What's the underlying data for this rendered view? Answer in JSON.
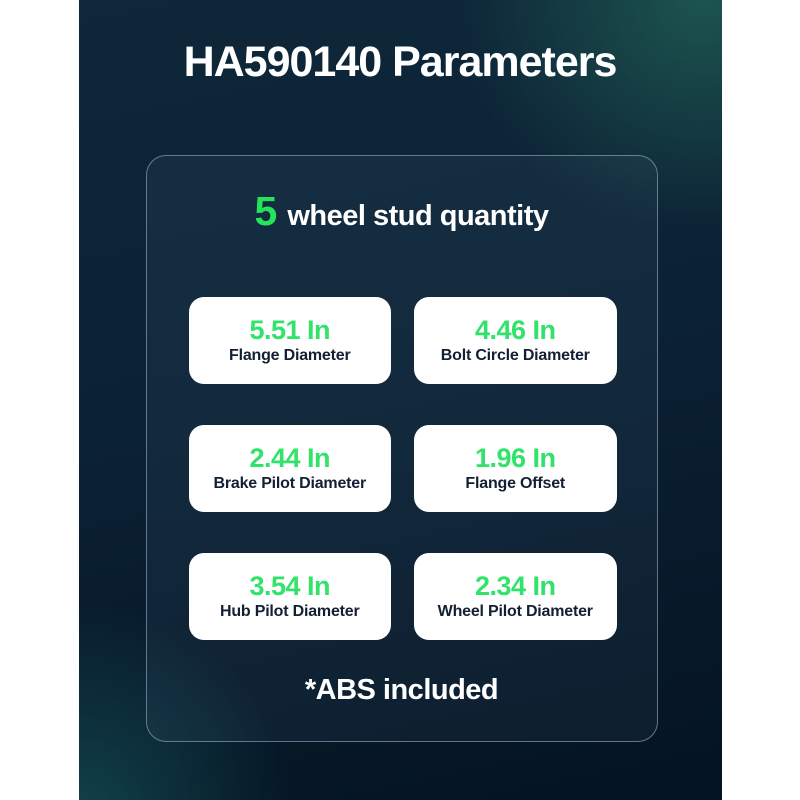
{
  "title": "HA590140 Parameters",
  "panel": {
    "stud_quantity": {
      "number": "5",
      "text": "wheel stud quantity"
    },
    "cards": [
      {
        "value": "5.51 In",
        "label": "Flange Diameter"
      },
      {
        "value": "4.46 In",
        "label": "Bolt Circle Diameter"
      },
      {
        "value": "2.44 In",
        "label": "Brake Pilot Diameter"
      },
      {
        "value": "1.96 In",
        "label": "Flange Offset"
      },
      {
        "value": "3.54 In",
        "label": "Hub Pilot Diameter"
      },
      {
        "value": "2.34 In",
        "label": "Wheel Pilot Diameter"
      }
    ],
    "footnote": "*ABS included"
  },
  "colors": {
    "accent_green": "#2be263",
    "card_background": "#ffffff",
    "card_label_navy": "#131f33",
    "background_navy_top": "#0e2739",
    "background_navy_bottom": "#041321",
    "background_teal_glow": "#1f5e52",
    "panel_border": "#a4becd",
    "title_white": "#ffffff"
  }
}
